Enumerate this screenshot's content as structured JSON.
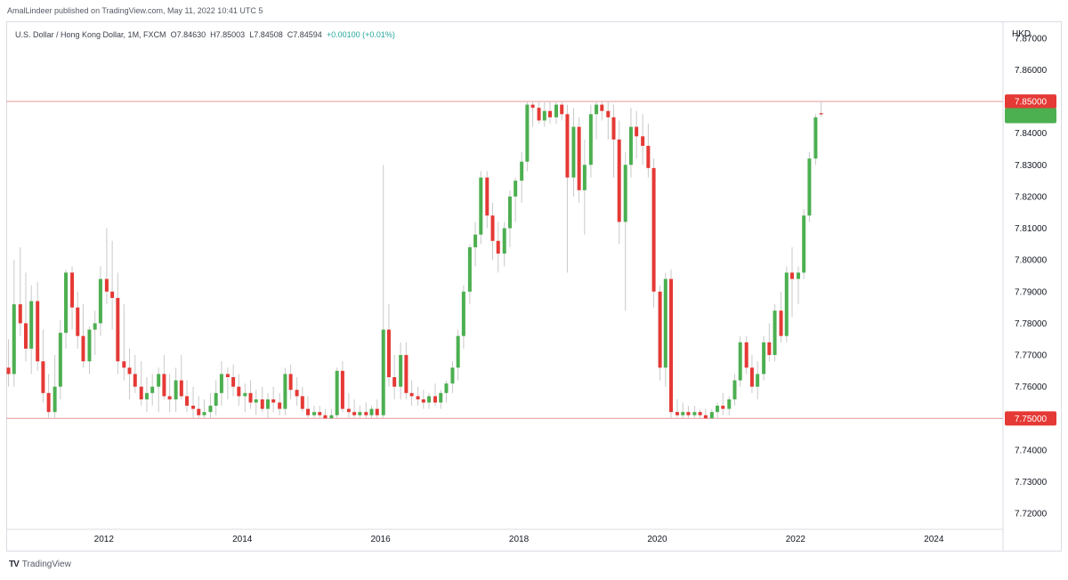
{
  "header": {
    "publish_line": "AmalLindeer published on TradingView.com, May 11, 2022 10:41 UTC 5"
  },
  "legend": {
    "symbol": "U.S. Dollar / Hong Kong Dollar, 1M, FXCM",
    "open": "O7.84630",
    "high": "H7.85003",
    "low": "L7.84508",
    "close": "C7.84594",
    "change": "+0.00100 (+0.01%)"
  },
  "footer": {
    "brand": "TradingView",
    "logo_glyph": "TV"
  },
  "colors": {
    "up": "#4caf50",
    "down": "#e53935",
    "wick": "#c9c9c9",
    "level_line": "#e8a3a3",
    "level_badge": "#e53935",
    "current_badge": "#4caf50"
  },
  "chart_data": {
    "type": "candlestick",
    "title": "U.S. Dollar / Hong Kong Dollar, 1M, FXCM",
    "y_axis_label": "HKD",
    "y_range": [
      7.715,
      7.875
    ],
    "y_ticks": [
      "7.87000",
      "7.86000",
      "7.85000",
      "7.84000",
      "7.83000",
      "7.82000",
      "7.81000",
      "7.80000",
      "7.79000",
      "7.78000",
      "7.77000",
      "7.76000",
      "7.75000",
      "7.74000",
      "7.73000",
      "7.72000"
    ],
    "x_range": [
      2010.6,
      2025.0
    ],
    "x_ticks": [
      "2012",
      "2014",
      "2016",
      "2018",
      "2020",
      "2022",
      "2024"
    ],
    "horizontal_levels": [
      {
        "value": 7.85,
        "label": "7.85000"
      },
      {
        "value": 7.75,
        "label": "7.75000"
      }
    ],
    "current_price": 7.84594,
    "candles": [
      {
        "t": 2010.62,
        "o": 7.766,
        "h": 7.775,
        "l": 7.76,
        "c": 7.764
      },
      {
        "t": 2010.7,
        "o": 7.764,
        "h": 7.8,
        "l": 7.76,
        "c": 7.786
      },
      {
        "t": 2010.79,
        "o": 7.786,
        "h": 7.804,
        "l": 7.776,
        "c": 7.78
      },
      {
        "t": 2010.87,
        "o": 7.78,
        "h": 7.796,
        "l": 7.768,
        "c": 7.772
      },
      {
        "t": 2010.95,
        "o": 7.772,
        "h": 7.792,
        "l": 7.764,
        "c": 7.787
      },
      {
        "t": 2011.04,
        "o": 7.787,
        "h": 7.793,
        "l": 7.765,
        "c": 7.768
      },
      {
        "t": 2011.12,
        "o": 7.768,
        "h": 7.778,
        "l": 7.755,
        "c": 7.758
      },
      {
        "t": 2011.2,
        "o": 7.758,
        "h": 7.764,
        "l": 7.75,
        "c": 7.752
      },
      {
        "t": 2011.29,
        "o": 7.752,
        "h": 7.77,
        "l": 7.75,
        "c": 7.76
      },
      {
        "t": 2011.37,
        "o": 7.76,
        "h": 7.781,
        "l": 7.756,
        "c": 7.777
      },
      {
        "t": 2011.45,
        "o": 7.777,
        "h": 7.797,
        "l": 7.772,
        "c": 7.796
      },
      {
        "t": 2011.54,
        "o": 7.796,
        "h": 7.798,
        "l": 7.778,
        "c": 7.785
      },
      {
        "t": 2011.62,
        "o": 7.785,
        "h": 7.79,
        "l": 7.772,
        "c": 7.776
      },
      {
        "t": 2011.7,
        "o": 7.776,
        "h": 7.786,
        "l": 7.766,
        "c": 7.768
      },
      {
        "t": 2011.79,
        "o": 7.768,
        "h": 7.779,
        "l": 7.764,
        "c": 7.778
      },
      {
        "t": 2011.87,
        "o": 7.778,
        "h": 7.784,
        "l": 7.77,
        "c": 7.78
      },
      {
        "t": 2011.95,
        "o": 7.78,
        "h": 7.798,
        "l": 7.776,
        "c": 7.794
      },
      {
        "t": 2012.04,
        "o": 7.794,
        "h": 7.81,
        "l": 7.786,
        "c": 7.79
      },
      {
        "t": 2012.12,
        "o": 7.79,
        "h": 7.806,
        "l": 7.778,
        "c": 7.788
      },
      {
        "t": 2012.2,
        "o": 7.788,
        "h": 7.796,
        "l": 7.764,
        "c": 7.768
      },
      {
        "t": 2012.29,
        "o": 7.768,
        "h": 7.786,
        "l": 7.762,
        "c": 7.766
      },
      {
        "t": 2012.37,
        "o": 7.766,
        "h": 7.772,
        "l": 7.756,
        "c": 7.764
      },
      {
        "t": 2012.45,
        "o": 7.764,
        "h": 7.77,
        "l": 7.758,
        "c": 7.76
      },
      {
        "t": 2012.54,
        "o": 7.76,
        "h": 7.768,
        "l": 7.754,
        "c": 7.756
      },
      {
        "t": 2012.62,
        "o": 7.756,
        "h": 7.763,
        "l": 7.752,
        "c": 7.758
      },
      {
        "t": 2012.7,
        "o": 7.758,
        "h": 7.764,
        "l": 7.754,
        "c": 7.76
      },
      {
        "t": 2012.79,
        "o": 7.76,
        "h": 7.766,
        "l": 7.752,
        "c": 7.764
      },
      {
        "t": 2012.87,
        "o": 7.764,
        "h": 7.77,
        "l": 7.756,
        "c": 7.757
      },
      {
        "t": 2012.95,
        "o": 7.757,
        "h": 7.764,
        "l": 7.752,
        "c": 7.756
      },
      {
        "t": 2013.04,
        "o": 7.756,
        "h": 7.766,
        "l": 7.752,
        "c": 7.762
      },
      {
        "t": 2013.12,
        "o": 7.762,
        "h": 7.77,
        "l": 7.756,
        "c": 7.757
      },
      {
        "t": 2013.2,
        "o": 7.757,
        "h": 7.762,
        "l": 7.752,
        "c": 7.754
      },
      {
        "t": 2013.29,
        "o": 7.754,
        "h": 7.76,
        "l": 7.75,
        "c": 7.753
      },
      {
        "t": 2013.37,
        "o": 7.753,
        "h": 7.757,
        "l": 7.75,
        "c": 7.751
      },
      {
        "t": 2013.45,
        "o": 7.751,
        "h": 7.756,
        "l": 7.75,
        "c": 7.752
      },
      {
        "t": 2013.54,
        "o": 7.752,
        "h": 7.758,
        "l": 7.75,
        "c": 7.754
      },
      {
        "t": 2013.62,
        "o": 7.754,
        "h": 7.762,
        "l": 7.751,
        "c": 7.758
      },
      {
        "t": 2013.7,
        "o": 7.758,
        "h": 7.768,
        "l": 7.754,
        "c": 7.764
      },
      {
        "t": 2013.79,
        "o": 7.764,
        "h": 7.766,
        "l": 7.756,
        "c": 7.763
      },
      {
        "t": 2013.87,
        "o": 7.763,
        "h": 7.767,
        "l": 7.757,
        "c": 7.76
      },
      {
        "t": 2013.95,
        "o": 7.76,
        "h": 7.764,
        "l": 7.754,
        "c": 7.757
      },
      {
        "t": 2014.04,
        "o": 7.757,
        "h": 7.761,
        "l": 7.752,
        "c": 7.758
      },
      {
        "t": 2014.12,
        "o": 7.758,
        "h": 7.762,
        "l": 7.753,
        "c": 7.755
      },
      {
        "t": 2014.2,
        "o": 7.755,
        "h": 7.759,
        "l": 7.751,
        "c": 7.756
      },
      {
        "t": 2014.29,
        "o": 7.756,
        "h": 7.76,
        "l": 7.752,
        "c": 7.753
      },
      {
        "t": 2014.37,
        "o": 7.753,
        "h": 7.758,
        "l": 7.75,
        "c": 7.756
      },
      {
        "t": 2014.45,
        "o": 7.756,
        "h": 7.76,
        "l": 7.752,
        "c": 7.755
      },
      {
        "t": 2014.54,
        "o": 7.755,
        "h": 7.758,
        "l": 7.751,
        "c": 7.753
      },
      {
        "t": 2014.62,
        "o": 7.753,
        "h": 7.766,
        "l": 7.751,
        "c": 7.764
      },
      {
        "t": 2014.7,
        "o": 7.764,
        "h": 7.767,
        "l": 7.756,
        "c": 7.759
      },
      {
        "t": 2014.79,
        "o": 7.759,
        "h": 7.763,
        "l": 7.754,
        "c": 7.757
      },
      {
        "t": 2014.87,
        "o": 7.757,
        "h": 7.76,
        "l": 7.752,
        "c": 7.753
      },
      {
        "t": 2014.95,
        "o": 7.753,
        "h": 7.757,
        "l": 7.75,
        "c": 7.751
      },
      {
        "t": 2015.04,
        "o": 7.751,
        "h": 7.754,
        "l": 7.75,
        "c": 7.752
      },
      {
        "t": 2015.12,
        "o": 7.752,
        "h": 7.754,
        "l": 7.75,
        "c": 7.751
      },
      {
        "t": 2015.2,
        "o": 7.751,
        "h": 7.753,
        "l": 7.75,
        "c": 7.75
      },
      {
        "t": 2015.29,
        "o": 7.75,
        "h": 7.753,
        "l": 7.75,
        "c": 7.751
      },
      {
        "t": 2015.37,
        "o": 7.751,
        "h": 7.766,
        "l": 7.75,
        "c": 7.765
      },
      {
        "t": 2015.45,
        "o": 7.765,
        "h": 7.768,
        "l": 7.752,
        "c": 7.753
      },
      {
        "t": 2015.54,
        "o": 7.753,
        "h": 7.758,
        "l": 7.75,
        "c": 7.752
      },
      {
        "t": 2015.62,
        "o": 7.752,
        "h": 7.756,
        "l": 7.75,
        "c": 7.751
      },
      {
        "t": 2015.7,
        "o": 7.751,
        "h": 7.754,
        "l": 7.75,
        "c": 7.752
      },
      {
        "t": 2015.79,
        "o": 7.752,
        "h": 7.755,
        "l": 7.75,
        "c": 7.751
      },
      {
        "t": 2015.87,
        "o": 7.751,
        "h": 7.754,
        "l": 7.75,
        "c": 7.753
      },
      {
        "t": 2015.95,
        "o": 7.753,
        "h": 7.756,
        "l": 7.75,
        "c": 7.751
      },
      {
        "t": 2016.04,
        "o": 7.751,
        "h": 7.83,
        "l": 7.75,
        "c": 7.778
      },
      {
        "t": 2016.12,
        "o": 7.778,
        "h": 7.786,
        "l": 7.76,
        "c": 7.763
      },
      {
        "t": 2016.2,
        "o": 7.763,
        "h": 7.77,
        "l": 7.756,
        "c": 7.76
      },
      {
        "t": 2016.29,
        "o": 7.76,
        "h": 7.774,
        "l": 7.756,
        "c": 7.77
      },
      {
        "t": 2016.37,
        "o": 7.77,
        "h": 7.774,
        "l": 7.756,
        "c": 7.758
      },
      {
        "t": 2016.45,
        "o": 7.758,
        "h": 7.762,
        "l": 7.754,
        "c": 7.757
      },
      {
        "t": 2016.54,
        "o": 7.757,
        "h": 7.76,
        "l": 7.754,
        "c": 7.756
      },
      {
        "t": 2016.62,
        "o": 7.756,
        "h": 7.759,
        "l": 7.753,
        "c": 7.755
      },
      {
        "t": 2016.7,
        "o": 7.755,
        "h": 7.758,
        "l": 7.753,
        "c": 7.757
      },
      {
        "t": 2016.79,
        "o": 7.757,
        "h": 7.761,
        "l": 7.754,
        "c": 7.755
      },
      {
        "t": 2016.87,
        "o": 7.755,
        "h": 7.759,
        "l": 7.753,
        "c": 7.758
      },
      {
        "t": 2016.95,
        "o": 7.758,
        "h": 7.762,
        "l": 7.755,
        "c": 7.761
      },
      {
        "t": 2017.04,
        "o": 7.761,
        "h": 7.768,
        "l": 7.758,
        "c": 7.766
      },
      {
        "t": 2017.12,
        "o": 7.766,
        "h": 7.778,
        "l": 7.762,
        "c": 7.776
      },
      {
        "t": 2017.2,
        "o": 7.776,
        "h": 7.792,
        "l": 7.772,
        "c": 7.79
      },
      {
        "t": 2017.29,
        "o": 7.79,
        "h": 7.805,
        "l": 7.786,
        "c": 7.804
      },
      {
        "t": 2017.37,
        "o": 7.804,
        "h": 7.812,
        "l": 7.798,
        "c": 7.808
      },
      {
        "t": 2017.45,
        "o": 7.808,
        "h": 7.828,
        "l": 7.805,
        "c": 7.826
      },
      {
        "t": 2017.54,
        "o": 7.826,
        "h": 7.828,
        "l": 7.81,
        "c": 7.814
      },
      {
        "t": 2017.62,
        "o": 7.814,
        "h": 7.818,
        "l": 7.8,
        "c": 7.806
      },
      {
        "t": 2017.7,
        "o": 7.806,
        "h": 7.812,
        "l": 7.796,
        "c": 7.802
      },
      {
        "t": 2017.79,
        "o": 7.802,
        "h": 7.812,
        "l": 7.798,
        "c": 7.81
      },
      {
        "t": 2017.87,
        "o": 7.81,
        "h": 7.822,
        "l": 7.804,
        "c": 7.82
      },
      {
        "t": 2017.95,
        "o": 7.82,
        "h": 7.826,
        "l": 7.812,
        "c": 7.825
      },
      {
        "t": 2018.04,
        "o": 7.825,
        "h": 7.834,
        "l": 7.818,
        "c": 7.831
      },
      {
        "t": 2018.12,
        "o": 7.831,
        "h": 7.85,
        "l": 7.828,
        "c": 7.849
      },
      {
        "t": 2018.2,
        "o": 7.849,
        "h": 7.85,
        "l": 7.842,
        "c": 7.848
      },
      {
        "t": 2018.29,
        "o": 7.848,
        "h": 7.85,
        "l": 7.843,
        "c": 7.844
      },
      {
        "t": 2018.37,
        "o": 7.844,
        "h": 7.85,
        "l": 7.842,
        "c": 7.847
      },
      {
        "t": 2018.45,
        "o": 7.847,
        "h": 7.85,
        "l": 7.843,
        "c": 7.845
      },
      {
        "t": 2018.54,
        "o": 7.845,
        "h": 7.85,
        "l": 7.843,
        "c": 7.849
      },
      {
        "t": 2018.62,
        "o": 7.849,
        "h": 7.85,
        "l": 7.844,
        "c": 7.846
      },
      {
        "t": 2018.7,
        "o": 7.846,
        "h": 7.849,
        "l": 7.796,
        "c": 7.826
      },
      {
        "t": 2018.79,
        "o": 7.826,
        "h": 7.848,
        "l": 7.82,
        "c": 7.842
      },
      {
        "t": 2018.87,
        "o": 7.842,
        "h": 7.845,
        "l": 7.818,
        "c": 7.822
      },
      {
        "t": 2018.95,
        "o": 7.822,
        "h": 7.838,
        "l": 7.808,
        "c": 7.83
      },
      {
        "t": 2019.04,
        "o": 7.83,
        "h": 7.849,
        "l": 7.826,
        "c": 7.846
      },
      {
        "t": 2019.12,
        "o": 7.846,
        "h": 7.85,
        "l": 7.838,
        "c": 7.849
      },
      {
        "t": 2019.2,
        "o": 7.849,
        "h": 7.85,
        "l": 7.844,
        "c": 7.847
      },
      {
        "t": 2019.29,
        "o": 7.847,
        "h": 7.85,
        "l": 7.838,
        "c": 7.845
      },
      {
        "t": 2019.37,
        "o": 7.845,
        "h": 7.849,
        "l": 7.826,
        "c": 7.838
      },
      {
        "t": 2019.45,
        "o": 7.838,
        "h": 7.844,
        "l": 7.805,
        "c": 7.812
      },
      {
        "t": 2019.54,
        "o": 7.812,
        "h": 7.834,
        "l": 7.784,
        "c": 7.83
      },
      {
        "t": 2019.62,
        "o": 7.83,
        "h": 7.848,
        "l": 7.826,
        "c": 7.842
      },
      {
        "t": 2019.7,
        "o": 7.842,
        "h": 7.847,
        "l": 7.832,
        "c": 7.839
      },
      {
        "t": 2019.79,
        "o": 7.839,
        "h": 7.846,
        "l": 7.83,
        "c": 7.836
      },
      {
        "t": 2019.87,
        "o": 7.836,
        "h": 7.843,
        "l": 7.826,
        "c": 7.829
      },
      {
        "t": 2019.95,
        "o": 7.829,
        "h": 7.832,
        "l": 7.785,
        "c": 7.79
      },
      {
        "t": 2020.04,
        "o": 7.79,
        "h": 7.792,
        "l": 7.762,
        "c": 7.766
      },
      {
        "t": 2020.12,
        "o": 7.766,
        "h": 7.796,
        "l": 7.76,
        "c": 7.794
      },
      {
        "t": 2020.2,
        "o": 7.794,
        "h": 7.797,
        "l": 7.75,
        "c": 7.752
      },
      {
        "t": 2020.29,
        "o": 7.752,
        "h": 7.756,
        "l": 7.75,
        "c": 7.751
      },
      {
        "t": 2020.37,
        "o": 7.751,
        "h": 7.755,
        "l": 7.75,
        "c": 7.752
      },
      {
        "t": 2020.45,
        "o": 7.752,
        "h": 7.754,
        "l": 7.75,
        "c": 7.751
      },
      {
        "t": 2020.54,
        "o": 7.751,
        "h": 7.754,
        "l": 7.75,
        "c": 7.752
      },
      {
        "t": 2020.62,
        "o": 7.752,
        "h": 7.753,
        "l": 7.75,
        "c": 7.751
      },
      {
        "t": 2020.7,
        "o": 7.751,
        "h": 7.753,
        "l": 7.75,
        "c": 7.75
      },
      {
        "t": 2020.79,
        "o": 7.75,
        "h": 7.753,
        "l": 7.75,
        "c": 7.752
      },
      {
        "t": 2020.87,
        "o": 7.752,
        "h": 7.755,
        "l": 7.75,
        "c": 7.754
      },
      {
        "t": 2020.95,
        "o": 7.754,
        "h": 7.758,
        "l": 7.751,
        "c": 7.753
      },
      {
        "t": 2021.04,
        "o": 7.753,
        "h": 7.757,
        "l": 7.751,
        "c": 7.756
      },
      {
        "t": 2021.12,
        "o": 7.756,
        "h": 7.764,
        "l": 7.754,
        "c": 7.762
      },
      {
        "t": 2021.2,
        "o": 7.762,
        "h": 7.776,
        "l": 7.76,
        "c": 7.774
      },
      {
        "t": 2021.29,
        "o": 7.774,
        "h": 7.776,
        "l": 7.764,
        "c": 7.766
      },
      {
        "t": 2021.37,
        "o": 7.766,
        "h": 7.77,
        "l": 7.758,
        "c": 7.76
      },
      {
        "t": 2021.45,
        "o": 7.76,
        "h": 7.768,
        "l": 7.756,
        "c": 7.764
      },
      {
        "t": 2021.54,
        "o": 7.764,
        "h": 7.776,
        "l": 7.762,
        "c": 7.774
      },
      {
        "t": 2021.62,
        "o": 7.774,
        "h": 7.78,
        "l": 7.768,
        "c": 7.77
      },
      {
        "t": 2021.7,
        "o": 7.77,
        "h": 7.786,
        "l": 7.768,
        "c": 7.784
      },
      {
        "t": 2021.79,
        "o": 7.784,
        "h": 7.79,
        "l": 7.774,
        "c": 7.776
      },
      {
        "t": 2021.87,
        "o": 7.776,
        "h": 7.798,
        "l": 7.774,
        "c": 7.796
      },
      {
        "t": 2021.95,
        "o": 7.796,
        "h": 7.804,
        "l": 7.782,
        "c": 7.794
      },
      {
        "t": 2022.04,
        "o": 7.794,
        "h": 7.798,
        "l": 7.786,
        "c": 7.796
      },
      {
        "t": 2022.12,
        "o": 7.796,
        "h": 7.816,
        "l": 7.794,
        "c": 7.814
      },
      {
        "t": 2022.2,
        "o": 7.814,
        "h": 7.834,
        "l": 7.812,
        "c": 7.832
      },
      {
        "t": 2022.29,
        "o": 7.832,
        "h": 7.846,
        "l": 7.83,
        "c": 7.845
      },
      {
        "t": 2022.37,
        "o": 7.8463,
        "h": 7.85003,
        "l": 7.84508,
        "c": 7.84594
      }
    ]
  }
}
